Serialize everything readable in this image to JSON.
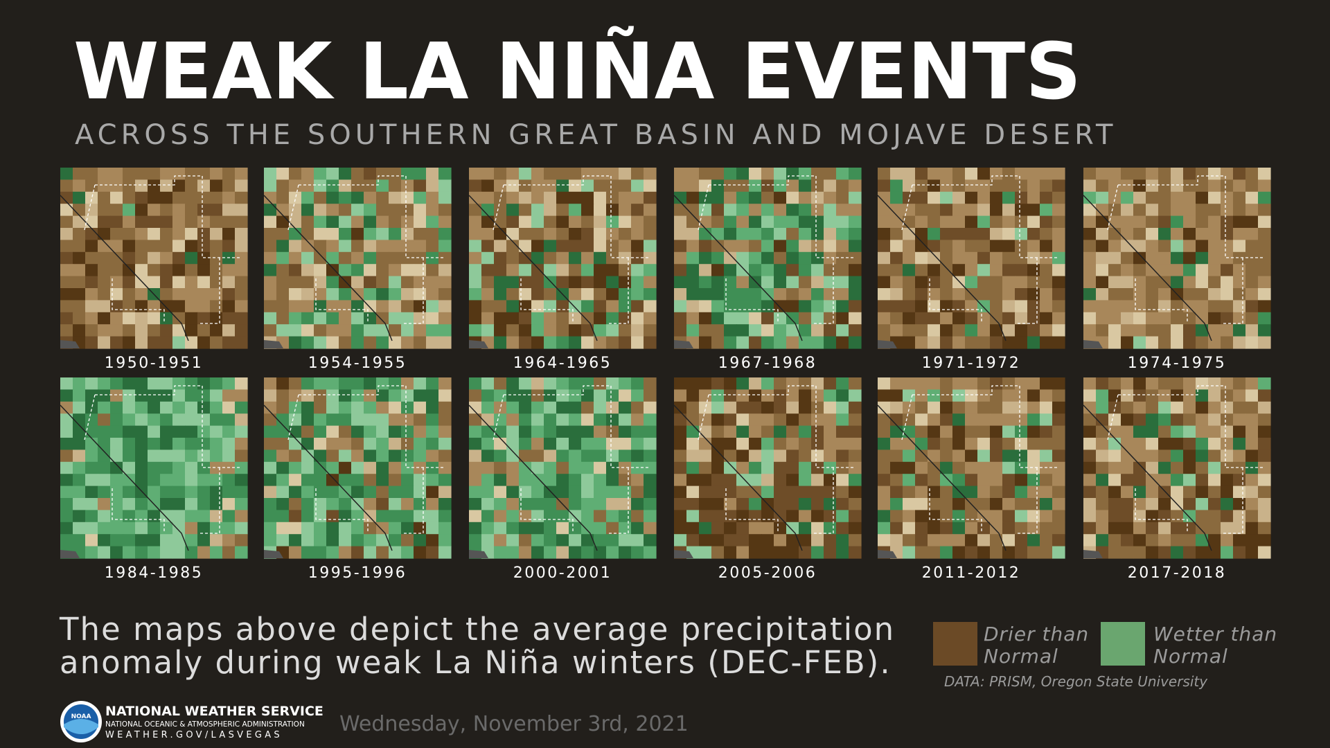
{
  "title": "WEAK LA NIÑA EVENTS",
  "subtitle": "ACROSS THE SOUTHERN GREAT BASIN AND MOJAVE DESERT",
  "maps": [
    {
      "label": "1950-1951"
    },
    {
      "label": "1954-1955"
    },
    {
      "label": "1964-1965"
    },
    {
      "label": "1967-1968"
    },
    {
      "label": "1971-1972"
    },
    {
      "label": "1974-1975"
    },
    {
      "label": "1984-1985"
    },
    {
      "label": "1995-1996"
    },
    {
      "label": "2000-2001"
    },
    {
      "label": "2005-2006"
    },
    {
      "label": "2011-2012"
    },
    {
      "label": "2017-2018"
    }
  ],
  "description": {
    "lines": [
      "The maps above depict the average precipitation",
      "anomaly during weak La Niña winters (DEC-FEB)."
    ]
  },
  "legend": {
    "items": [
      {
        "lines": [
          "Drier than",
          "Normal"
        ]
      },
      {
        "lines": [
          "Wetter than",
          "Normal"
        ]
      }
    ],
    "source": "DATA: PRISM, Oregon State University"
  },
  "footer": {
    "org": "NATIONAL WEATHER SERVICE",
    "agency": "NATIONAL OCEANIC & ATMOSPHERIC ADMINISTRATION",
    "website": "WEATHER.GOV/LASVEGAS",
    "logo": "NOAA",
    "date": "Wednesday, November 3rd, 2021"
  }
}
